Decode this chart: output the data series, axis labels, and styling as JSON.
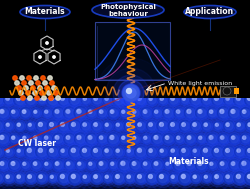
{
  "bg_color": "#000000",
  "fig_width": 2.51,
  "fig_height": 1.89,
  "dpi": 100,
  "labels": {
    "cw_laser": "CW laser",
    "white_light": "White light emission",
    "materials_bottom": "Materials"
  },
  "oval_specs": [
    [
      45,
      12,
      50,
      13,
      "Materials"
    ],
    [
      128,
      10,
      72,
      16,
      "Photophysical\nbehaviour"
    ],
    [
      210,
      12,
      52,
      13,
      "Application"
    ]
  ],
  "oval_facecolor": "#050a2e",
  "oval_edgecolor": "#1a40cc",
  "text_color": "#FFFFFF",
  "orange_wave_color": "#FF8C00",
  "sphere_grid_color": "#0033DD",
  "sphere_highlight": "#AABBFF",
  "laser_color": "#CC2200",
  "curve_colors": [
    "#2255FF",
    "#4488FF",
    "#CC44AA"
  ],
  "graph_box_color": "#00115a"
}
